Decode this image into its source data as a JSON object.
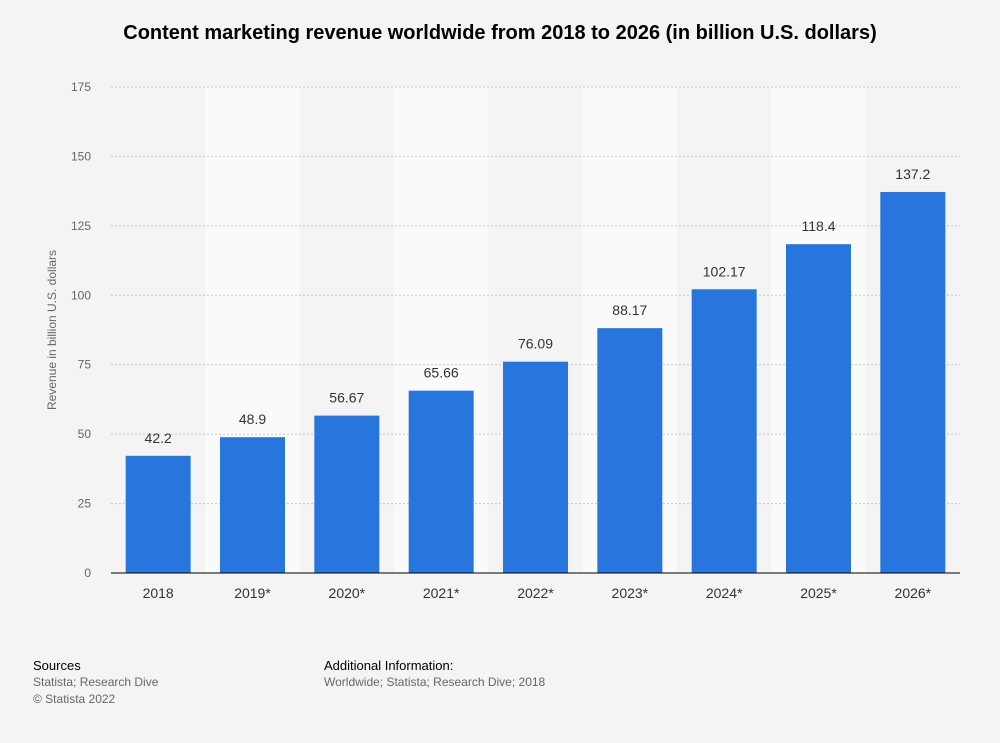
{
  "chart_data": {
    "type": "bar",
    "title": "Content marketing revenue worldwide from 2018 to 2026 (in billion U.S. dollars)",
    "xlabel": "",
    "ylabel": "Revenue in billion U.S. dollars",
    "categories": [
      "2018",
      "2019*",
      "2020*",
      "2021*",
      "2022*",
      "2023*",
      "2024*",
      "2025*",
      "2026*"
    ],
    "values": [
      42.2,
      48.9,
      56.67,
      65.66,
      76.09,
      88.17,
      102.17,
      118.4,
      137.2
    ],
    "value_labels": [
      "42.2",
      "48.9",
      "56.67",
      "65.66",
      "76.09",
      "88.17",
      "102.17",
      "118.4",
      "137.2"
    ],
    "ylim": [
      0,
      175
    ],
    "yticks": [
      0,
      25,
      50,
      75,
      100,
      125,
      150,
      175
    ],
    "grid": true,
    "bar_color": "#2876dd",
    "band_color": "#fafafa"
  },
  "footer": {
    "sources_heading": "Sources",
    "sources_text": "Statista; Research Dive",
    "copyright": "© Statista 2022",
    "additional_heading": "Additional Information:",
    "additional_text": "Worldwide; Statista; Research Dive; 2018"
  }
}
